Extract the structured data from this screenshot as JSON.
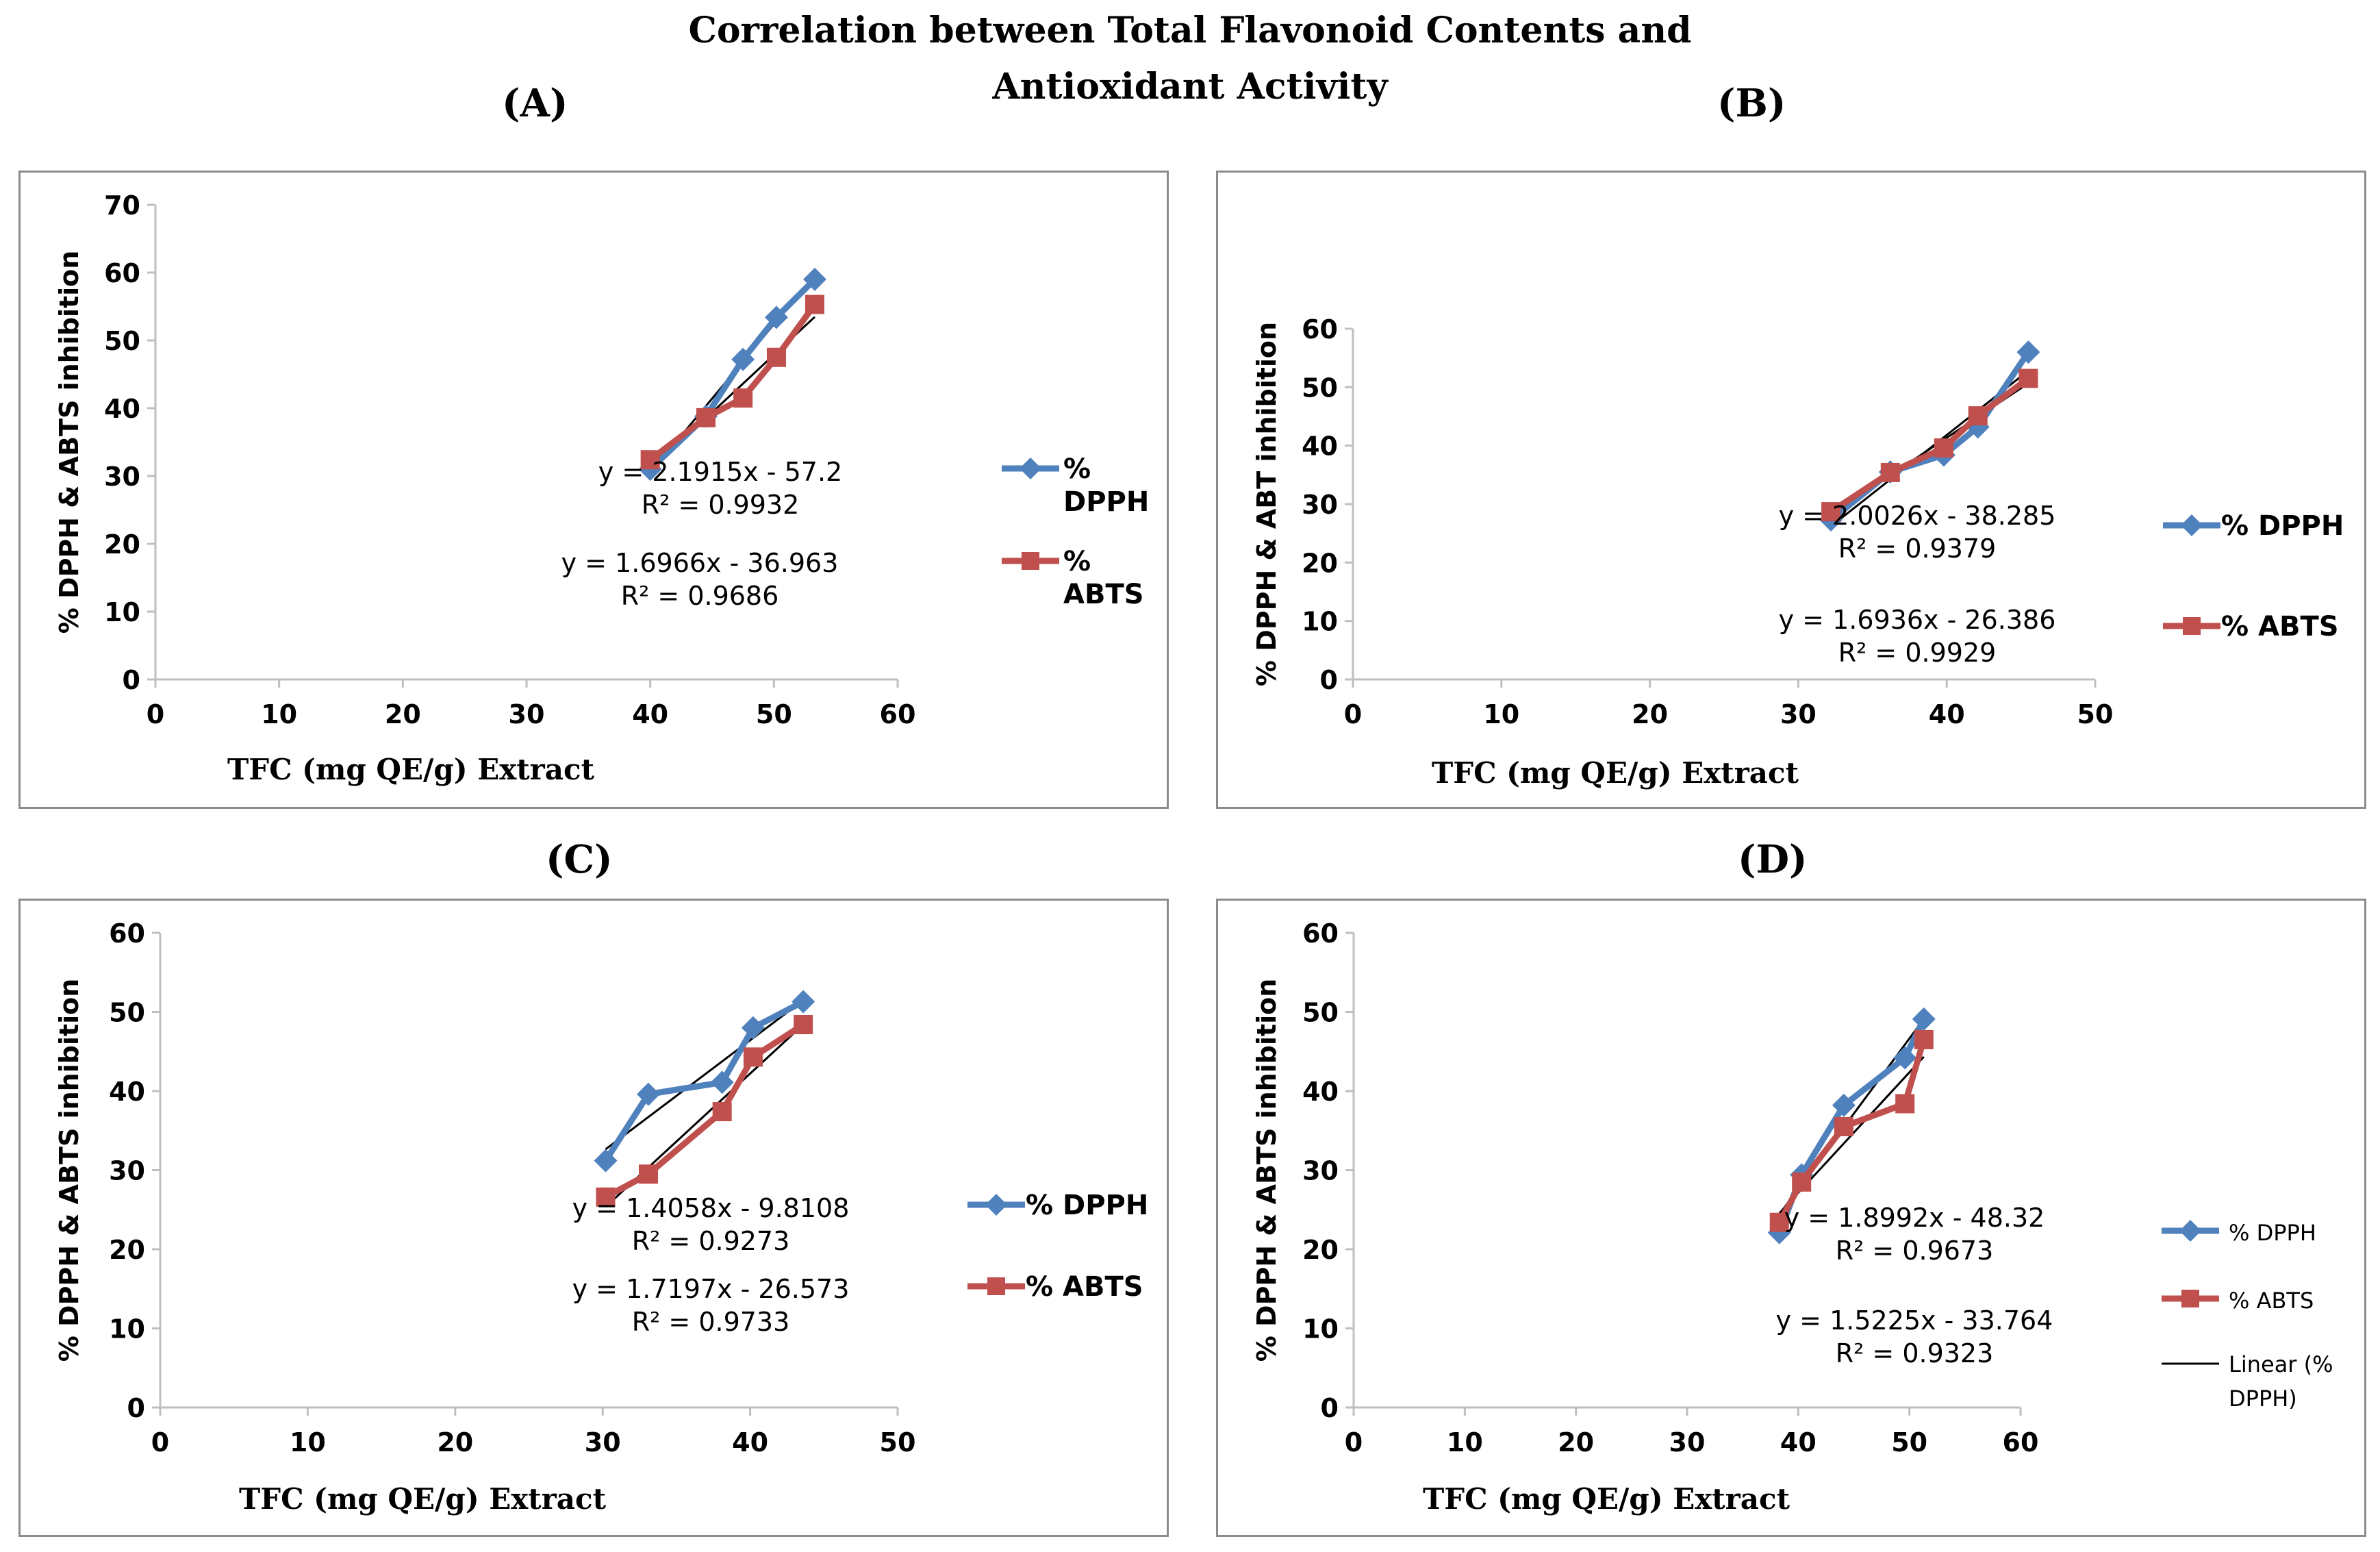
{
  "page": {
    "title_line1": "Correlation between Total Flavonoid Contents and",
    "title_line2": "Antioxidant Activity"
  },
  "colors": {
    "dpph": "#4F81BD",
    "abts": "#C0504D",
    "trend": "#000000",
    "axis": "#BFBFBF",
    "text": "#000000"
  },
  "chart_data": [
    {
      "panel": "(A)",
      "type": "line",
      "title": "",
      "xlabel": "TFC (mg QE/g) Extract",
      "ylabel": "% DPPH & ABTS inhibition",
      "xlim": [
        0,
        60
      ],
      "ylim": [
        0,
        70
      ],
      "xticks": [
        0,
        10,
        20,
        30,
        40,
        50,
        60
      ],
      "yticks": [
        0,
        10,
        20,
        30,
        40,
        50,
        60,
        70
      ],
      "series": [
        {
          "name_lines": [
            "%",
            "DPPH"
          ],
          "marker": "diamond",
          "x": [
            40,
            44.5,
            47.5,
            50.2,
            53.3
          ],
          "y": [
            31,
            38.8,
            47.2,
            53.4,
            59
          ]
        },
        {
          "name_lines": [
            "%",
            "ABTS"
          ],
          "marker": "square",
          "x": [
            40,
            44.5,
            47.5,
            50.2,
            53.3
          ],
          "y": [
            32.4,
            38.6,
            41.5,
            47.5,
            55.3
          ]
        }
      ],
      "trendlines": [
        {
          "slope": 2.1915,
          "intercept": -57.2,
          "xrange": [
            40,
            53.3
          ]
        },
        {
          "slope": 1.6966,
          "intercept": -36.963,
          "xrange": [
            40,
            53.3
          ]
        }
      ],
      "annotations": [
        {
          "text": "y = 2.1915x - 57.2"
        },
        {
          "text": "R² = 0.9932"
        },
        {
          "text": "y = 1.6966x - 36.963"
        },
        {
          "text": "R² = 0.9686"
        }
      ]
    },
    {
      "panel": "(B)",
      "type": "line",
      "title": "",
      "xlabel": "TFC (mg QE/g) Extract",
      "ylabel": "% DPPH & ABT inhibition",
      "xlim": [
        0,
        50
      ],
      "ylim": [
        0,
        60
      ],
      "xticks": [
        0,
        10,
        20,
        30,
        40,
        50
      ],
      "yticks": [
        0,
        10,
        20,
        30,
        40,
        50,
        60
      ],
      "series": [
        {
          "name_lines": [
            "% DPPH"
          ],
          "marker": "diamond",
          "x": [
            32.2,
            36.2,
            39.8,
            42.1,
            45.5
          ],
          "y": [
            27.3,
            35.5,
            38.4,
            43.2,
            56
          ]
        },
        {
          "name_lines": [
            "% ABTS"
          ],
          "marker": "square",
          "x": [
            32.2,
            36.2,
            39.8,
            42.1,
            45.5
          ],
          "y": [
            28.7,
            35.4,
            39.6,
            45.1,
            51.5
          ]
        }
      ],
      "trendlines": [
        {
          "slope": 2.0026,
          "intercept": -38.285,
          "xrange": [
            32.2,
            45.5
          ]
        },
        {
          "slope": 1.6936,
          "intercept": -26.386,
          "xrange": [
            32.2,
            45.5
          ]
        }
      ],
      "annotations": [
        {
          "text": "y = 2.0026x - 38.285"
        },
        {
          "text": "R² = 0.9379"
        },
        {
          "text": "y = 1.6936x - 26.386"
        },
        {
          "text": "R² = 0.9929"
        }
      ]
    },
    {
      "panel": "(C)",
      "type": "line",
      "title": "",
      "xlabel": "TFC (mg QE/g) Extract",
      "ylabel": "% DPPH & ABTS inhibition",
      "xlim": [
        0,
        50
      ],
      "ylim": [
        0,
        60
      ],
      "xticks": [
        0,
        10,
        20,
        30,
        40,
        50
      ],
      "yticks": [
        0,
        10,
        20,
        30,
        40,
        50,
        60
      ],
      "series": [
        {
          "name_lines": [
            "% DPPH"
          ],
          "marker": "diamond",
          "x": [
            30.2,
            33.1,
            38.1,
            40.2,
            43.6
          ],
          "y": [
            31.2,
            39.6,
            41.1,
            48,
            51.3
          ]
        },
        {
          "name_lines": [
            "% ABTS"
          ],
          "marker": "square",
          "x": [
            30.2,
            33.1,
            38.1,
            40.2,
            43.6
          ],
          "y": [
            26.6,
            29.5,
            37.4,
            44.3,
            48.4
          ]
        }
      ],
      "trendlines": [
        {
          "slope": 1.4058,
          "intercept": -9.8108,
          "xrange": [
            30.2,
            43.6
          ]
        },
        {
          "slope": 1.7197,
          "intercept": -26.573,
          "xrange": [
            30.2,
            43.6
          ]
        }
      ],
      "annotations": [
        {
          "text": "y = 1.4058x - 9.8108"
        },
        {
          "text": "R² = 0.9273"
        },
        {
          "text": "y = 1.7197x - 26.573"
        },
        {
          "text": "R² = 0.9733"
        }
      ]
    },
    {
      "panel": "(D)",
      "type": "line",
      "title": "",
      "xlabel": "TFC (mg QE/g) Extract",
      "ylabel": "% DPPH & ABTS inhibition",
      "xlim": [
        0,
        60
      ],
      "ylim": [
        0,
        60
      ],
      "xticks": [
        0,
        10,
        20,
        30,
        40,
        50,
        60
      ],
      "yticks": [
        0,
        10,
        20,
        30,
        40,
        50,
        60
      ],
      "series": [
        {
          "name_lines": [
            "% DPPH"
          ],
          "marker": "diamond",
          "x": [
            38.3,
            40.3,
            44.1,
            49.6,
            51.3
          ],
          "y": [
            22.1,
            29.4,
            38.2,
            44.2,
            49.1
          ]
        },
        {
          "name_lines": [
            "% ABTS"
          ],
          "marker": "square",
          "x": [
            38.3,
            40.3,
            44.1,
            49.6,
            51.3
          ],
          "y": [
            23.4,
            28.5,
            35.5,
            38.4,
            46.5
          ]
        }
      ],
      "trendlines": [
        {
          "slope": 1.8992,
          "intercept": -48.32,
          "xrange": [
            38.3,
            51.3
          ]
        },
        {
          "slope": 1.5225,
          "intercept": -33.764,
          "xrange": [
            38.3,
            51.3
          ]
        }
      ],
      "trend_legend_lines": [
        "Linear (%",
        "DPPH)"
      ],
      "annotations": [
        {
          "text": "y = 1.8992x - 48.32"
        },
        {
          "text": "R² = 0.9673"
        },
        {
          "text": "y = 1.5225x - 33.764"
        },
        {
          "text": "R² = 0.9323"
        }
      ]
    }
  ]
}
